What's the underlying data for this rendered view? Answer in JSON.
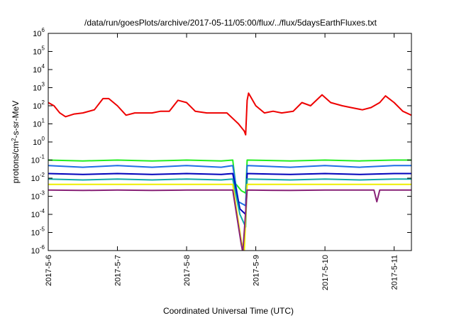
{
  "chart_data": {
    "type": "line",
    "title": "/data/run/goesPlots/archive/2017-05-11/05:00/flux/../flux/5daysEarthFluxes.txt",
    "xlabel": "Coordinated Universal Time (UTC)",
    "ylabel_base": "protons/cm",
    "ylabel_exp": "2",
    "ylabel_tail": "-s-sr-MeV",
    "yscale": "log",
    "ylim": [
      1e-06,
      1000000.0
    ],
    "xlim": [
      "2017-05-06 00:00",
      "2017-05-11 06:00"
    ],
    "x_ticks": [
      {
        "label": "2017-5-6",
        "date": "2017-05-06"
      },
      {
        "label": "2017-5-7",
        "date": "2017-05-07"
      },
      {
        "label": "2017-5-8",
        "date": "2017-05-08"
      },
      {
        "label": "2017-5-9",
        "date": "2017-05-09"
      },
      {
        "label": "2017-5-10",
        "date": "2017-05-10"
      },
      {
        "label": "2017-5-11",
        "date": "2017-05-11"
      }
    ],
    "y_ticks": [
      {
        "base": "10",
        "exp": "-6",
        "value": 1e-06
      },
      {
        "base": "10",
        "exp": "-5",
        "value": 1e-05
      },
      {
        "base": "10",
        "exp": "-4",
        "value": 0.0001
      },
      {
        "base": "10",
        "exp": "-3",
        "value": 0.001
      },
      {
        "base": "10",
        "exp": "-2",
        "value": 0.01
      },
      {
        "base": "10",
        "exp": "-1",
        "value": 0.1
      },
      {
        "base": "10",
        "exp": "0",
        "value": 1
      },
      {
        "base": "10",
        "exp": "1",
        "value": 10
      },
      {
        "base": "10",
        "exp": "2",
        "value": 100
      },
      {
        "base": "10",
        "exp": "3",
        "value": 1000
      },
      {
        "base": "10",
        "exp": "4",
        "value": 10000
      },
      {
        "base": "10",
        "exp": "5",
        "value": 100000
      },
      {
        "base": "10",
        "exp": "6",
        "value": 1000000
      }
    ],
    "grid": false,
    "legend": "none",
    "series": [
      {
        "color": "#ee0000",
        "points": [
          [
            "2017-05-06 00:00",
            150
          ],
          [
            "2017-05-06 02:00",
            100
          ],
          [
            "2017-05-06 04:00",
            40
          ],
          [
            "2017-05-06 06:00",
            25
          ],
          [
            "2017-05-06 09:00",
            35
          ],
          [
            "2017-05-06 12:00",
            40
          ],
          [
            "2017-05-06 16:00",
            60
          ],
          [
            "2017-05-06 19:00",
            250
          ],
          [
            "2017-05-06 21:00",
            250
          ],
          [
            "2017-05-07 00:00",
            100
          ],
          [
            "2017-05-07 03:00",
            30
          ],
          [
            "2017-05-07 06:00",
            40
          ],
          [
            "2017-05-07 09:00",
            40
          ],
          [
            "2017-05-07 12:00",
            40
          ],
          [
            "2017-05-07 15:00",
            50
          ],
          [
            "2017-05-07 18:00",
            50
          ],
          [
            "2017-05-07 21:00",
            200
          ],
          [
            "2017-05-08 00:00",
            150
          ],
          [
            "2017-05-08 03:00",
            50
          ],
          [
            "2017-05-08 07:00",
            40
          ],
          [
            "2017-05-08 11:00",
            40
          ],
          [
            "2017-05-08 14:00",
            40
          ],
          [
            "2017-05-08 16:00",
            20
          ],
          [
            "2017-05-08 18:00",
            10
          ],
          [
            "2017-05-08 20:00",
            4
          ],
          [
            "2017-05-08 20:30",
            2.5
          ],
          [
            "2017-05-08 21:00",
            200
          ],
          [
            "2017-05-08 21:30",
            500
          ],
          [
            "2017-05-09 00:00",
            100
          ],
          [
            "2017-05-09 03:00",
            40
          ],
          [
            "2017-05-09 06:00",
            50
          ],
          [
            "2017-05-09 09:00",
            40
          ],
          [
            "2017-05-09 13:00",
            50
          ],
          [
            "2017-05-09 16:00",
            150
          ],
          [
            "2017-05-09 19:00",
            100
          ],
          [
            "2017-05-09 23:00",
            400
          ],
          [
            "2017-05-10 02:00",
            150
          ],
          [
            "2017-05-10 06:00",
            100
          ],
          [
            "2017-05-10 09:00",
            80
          ],
          [
            "2017-05-10 13:00",
            60
          ],
          [
            "2017-05-10 16:00",
            80
          ],
          [
            "2017-05-10 19:00",
            150
          ],
          [
            "2017-05-10 21:00",
            350
          ],
          [
            "2017-05-11 00:00",
            150
          ],
          [
            "2017-05-11 03:00",
            50
          ],
          [
            "2017-05-11 06:00",
            30
          ]
        ]
      },
      {
        "color": "#22ee22",
        "points": [
          [
            "2017-05-06 00:00",
            0.1
          ],
          [
            "2017-05-06 12:00",
            0.09
          ],
          [
            "2017-05-07 00:00",
            0.1
          ],
          [
            "2017-05-07 12:00",
            0.09
          ],
          [
            "2017-05-08 00:00",
            0.1
          ],
          [
            "2017-05-08 12:00",
            0.09
          ],
          [
            "2017-05-08 16:00",
            0.1
          ],
          [
            "2017-05-08 17:00",
            0.005
          ],
          [
            "2017-05-08 19:00",
            0.002
          ],
          [
            "2017-05-08 20:30",
            0.0015
          ],
          [
            "2017-05-08 21:00",
            0.1
          ],
          [
            "2017-05-09 12:00",
            0.09
          ],
          [
            "2017-05-10 00:00",
            0.1
          ],
          [
            "2017-05-10 12:00",
            0.09
          ],
          [
            "2017-05-11 00:00",
            0.1
          ],
          [
            "2017-05-11 06:00",
            0.1
          ]
        ]
      },
      {
        "color": "#1e6ee6",
        "points": [
          [
            "2017-05-06 00:00",
            0.05
          ],
          [
            "2017-05-06 12:00",
            0.04
          ],
          [
            "2017-05-07 00:00",
            0.05
          ],
          [
            "2017-05-07 12:00",
            0.04
          ],
          [
            "2017-05-08 00:00",
            0.05
          ],
          [
            "2017-05-08 12:00",
            0.04
          ],
          [
            "2017-05-08 16:00",
            0.05
          ],
          [
            "2017-05-08 18:00",
            0.0005
          ],
          [
            "2017-05-08 20:30",
            0.0003
          ],
          [
            "2017-05-08 21:00",
            0.05
          ],
          [
            "2017-05-09 12:00",
            0.04
          ],
          [
            "2017-05-10 00:00",
            0.05
          ],
          [
            "2017-05-10 12:00",
            0.04
          ],
          [
            "2017-05-11 00:00",
            0.05
          ],
          [
            "2017-05-11 06:00",
            0.05
          ]
        ]
      },
      {
        "color": "#0000bb",
        "points": [
          [
            "2017-05-06 00:00",
            0.018
          ],
          [
            "2017-05-06 12:00",
            0.016
          ],
          [
            "2017-05-07 00:00",
            0.018
          ],
          [
            "2017-05-07 12:00",
            0.016
          ],
          [
            "2017-05-08 00:00",
            0.018
          ],
          [
            "2017-05-08 12:00",
            0.016
          ],
          [
            "2017-05-08 16:00",
            0.018
          ],
          [
            "2017-05-08 18:30",
            0.0002
          ],
          [
            "2017-05-08 20:30",
            0.0001
          ],
          [
            "2017-05-08 21:00",
            0.018
          ],
          [
            "2017-05-09 12:00",
            0.016
          ],
          [
            "2017-05-10 00:00",
            0.018
          ],
          [
            "2017-05-10 12:00",
            0.016
          ],
          [
            "2017-05-11 00:00",
            0.018
          ],
          [
            "2017-05-11 06:00",
            0.018
          ]
        ]
      },
      {
        "color": "#11aaaa",
        "points": [
          [
            "2017-05-06 00:00",
            0.009
          ],
          [
            "2017-05-06 12:00",
            0.008
          ],
          [
            "2017-05-07 00:00",
            0.009
          ],
          [
            "2017-05-07 12:00",
            0.008
          ],
          [
            "2017-05-08 00:00",
            0.009
          ],
          [
            "2017-05-08 12:00",
            0.008
          ],
          [
            "2017-05-08 16:00",
            0.009
          ],
          [
            "2017-05-08 18:30",
            0.0001
          ],
          [
            "2017-05-08 20:30",
            2e-05
          ],
          [
            "2017-05-08 21:00",
            0.009
          ],
          [
            "2017-05-09 12:00",
            0.008
          ],
          [
            "2017-05-10 00:00",
            0.009
          ],
          [
            "2017-05-10 12:00",
            0.008
          ],
          [
            "2017-05-11 00:00",
            0.009
          ],
          [
            "2017-05-11 06:00",
            0.009
          ]
        ]
      },
      {
        "color": "#eeee00",
        "points": [
          [
            "2017-05-06 00:00",
            0.0045
          ],
          [
            "2017-05-07 00:00",
            0.0045
          ],
          [
            "2017-05-08 00:00",
            0.0045
          ],
          [
            "2017-05-08 16:00",
            0.0045
          ],
          [
            "2017-05-08 19:00",
            3e-06
          ],
          [
            "2017-05-08 20:00",
            8e-07
          ],
          [
            "2017-05-08 21:00",
            0.0045
          ],
          [
            "2017-05-09 12:00",
            0.0045
          ],
          [
            "2017-05-10 00:00",
            0.0045
          ],
          [
            "2017-05-11 00:00",
            0.0045
          ],
          [
            "2017-05-11 06:00",
            0.0045
          ]
        ]
      },
      {
        "color": "#882277",
        "points": [
          [
            "2017-05-06 00:00",
            0.0022
          ],
          [
            "2017-05-06 12:00",
            0.0021
          ],
          [
            "2017-05-07 00:00",
            0.0022
          ],
          [
            "2017-05-07 12:00",
            0.0021
          ],
          [
            "2017-05-08 00:00",
            0.0022
          ],
          [
            "2017-05-08 16:00",
            0.0022
          ],
          [
            "2017-05-08 19:00",
            2e-06
          ],
          [
            "2017-05-08 19:30",
            8e-07
          ],
          [
            "2017-05-08 21:00",
            0.0022
          ],
          [
            "2017-05-09 12:00",
            0.0021
          ],
          [
            "2017-05-10 00:00",
            0.0022
          ],
          [
            "2017-05-10 17:00",
            0.0022
          ],
          [
            "2017-05-10 18:00",
            0.0005
          ],
          [
            "2017-05-10 19:00",
            0.0022
          ],
          [
            "2017-05-11 00:00",
            0.0022
          ],
          [
            "2017-05-11 06:00",
            0.0022
          ]
        ]
      }
    ]
  }
}
